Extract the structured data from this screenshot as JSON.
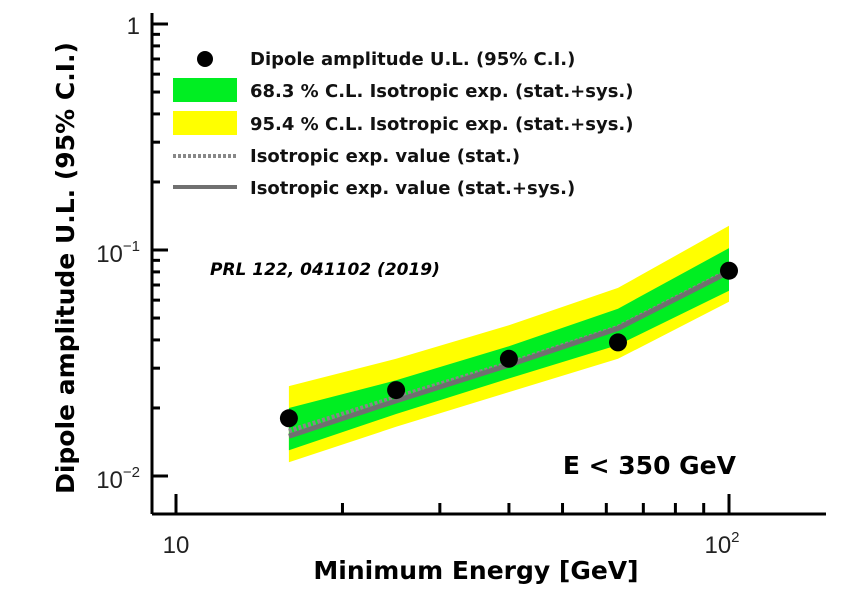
{
  "chart_data": {
    "type": "scatter",
    "title": "",
    "xlabel": "Minimum Energy [GeV]",
    "ylabel": "Dipole amplitude U.L. (95% C.I.)",
    "xscale": "log",
    "yscale": "log",
    "xlim": [
      8.0,
      150
    ],
    "ylim": [
      0.007,
      1.0
    ],
    "x_ticks": [
      {
        "base": "10",
        "exp": ""
      },
      {
        "base": "10",
        "exp": "2"
      }
    ],
    "y_ticks": [
      {
        "base": "1",
        "exp": ""
      },
      {
        "base": "10",
        "exp": "−1"
      },
      {
        "base": "10",
        "exp": "−2"
      }
    ],
    "series": [
      {
        "name": "Dipole amplitude U.L. (95% C.I.)",
        "kind": "points",
        "color": "#000000",
        "x": [
          16,
          25,
          40,
          63,
          100
        ],
        "y": [
          0.018,
          0.024,
          0.033,
          0.039,
          0.081
        ]
      },
      {
        "name": "68.3 % C.L. Isotropic exp. (stat.+sys.)",
        "kind": "band",
        "color": "#00ee22",
        "x": [
          16,
          25,
          40,
          63,
          100
        ],
        "lower": [
          0.013,
          0.0188,
          0.027,
          0.038,
          0.066
        ],
        "upper": [
          0.02,
          0.0265,
          0.0375,
          0.055,
          0.102
        ]
      },
      {
        "name": "95.4 % C.L. Isotropic exp. (stat.+sys.)",
        "kind": "band",
        "color": "#ffff00",
        "x": [
          16,
          25,
          40,
          63,
          100
        ],
        "lower": [
          0.0115,
          0.0165,
          0.0235,
          0.033,
          0.059
        ],
        "upper": [
          0.025,
          0.033,
          0.0465,
          0.068,
          0.128
        ]
      },
      {
        "name": "Isotropic exp. value (stat.)",
        "kind": "line",
        "style": "dotted",
        "color": "#888888",
        "x": [
          16,
          25,
          40,
          63,
          100
        ],
        "y": [
          0.0158,
          0.0223,
          0.0315,
          0.0455,
          0.081
        ]
      },
      {
        "name": "Isotropic exp. value (stat.+sys.)",
        "kind": "line",
        "style": "solid",
        "color": "#707070",
        "x": [
          16,
          25,
          40,
          63,
          100
        ],
        "y": [
          0.015,
          0.0215,
          0.031,
          0.045,
          0.08
        ]
      }
    ],
    "legend": {
      "placement": "top-left",
      "entries": [
        "Dipole amplitude U.L. (95% C.I.)",
        "68.3 % C.L. Isotropic exp. (stat.+sys.)",
        "95.4 % C.L. Isotropic exp. (stat.+sys.)",
        "Isotropic exp. value (stat.)",
        "Isotropic exp. value (stat.+sys.)"
      ]
    },
    "annotations": {
      "reference": "PRL 122, 041102 (2019)",
      "energy_cut": "E < 350 GeV"
    }
  }
}
